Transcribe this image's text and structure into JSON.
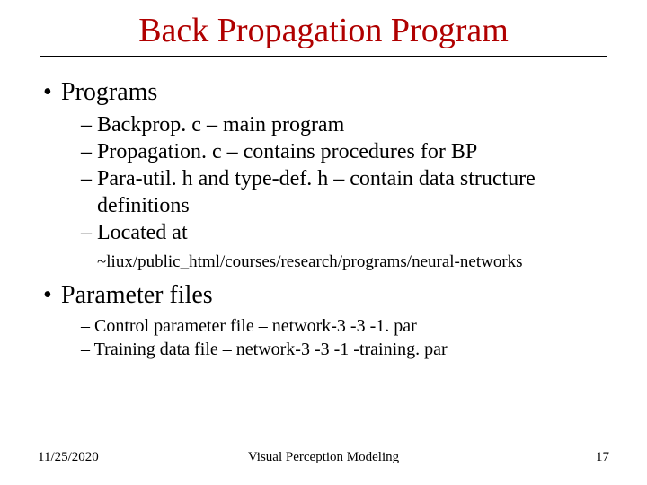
{
  "title": "Back Propagation Program",
  "section1": {
    "heading": "Programs",
    "items": [
      "Backprop. c – main program",
      "Propagation. c – contains procedures for BP",
      "Para-util. h  and type-def. h – contain data structure definitions",
      "Located at"
    ],
    "path": "~liux/public_html/courses/research/programs/neural-networks"
  },
  "section2": {
    "heading": "Parameter files",
    "items": [
      "Control parameter file – network-3 -3 -1. par",
      "Training data file – network-3 -3 -1 -training. par"
    ]
  },
  "footer": {
    "date": "11/25/2020",
    "center": "Visual Perception Modeling",
    "page": "17"
  },
  "colors": {
    "title": "#b00000",
    "text": "#000000",
    "background": "#ffffff"
  }
}
